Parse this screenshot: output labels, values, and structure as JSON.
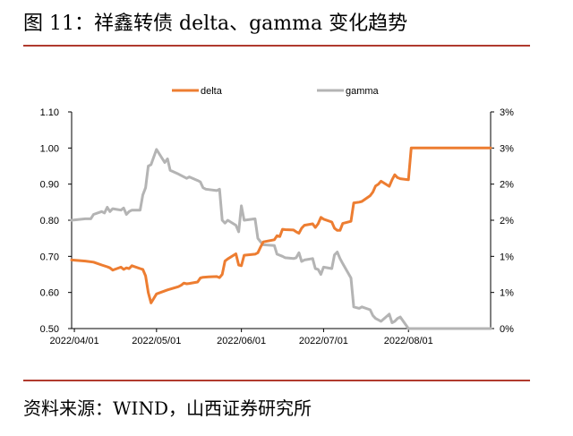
{
  "header": {
    "title": "图 11：祥鑫转债 delta、gamma 变化趋势"
  },
  "footer": {
    "source": "资料来源：WIND，山西证券研究所"
  },
  "colors": {
    "delta": "#ed7d31",
    "gamma": "#b4b4b4",
    "rule": "#b03a2e"
  },
  "chart_data": {
    "type": "line",
    "legend_position": "top",
    "grid": false,
    "x_ticks": [
      "2022/04/01",
      "2022/05/01",
      "2022/06/01",
      "2022/07/01",
      "2022/08/01"
    ],
    "y_left": {
      "ticks": [
        "0.50",
        "0.60",
        "0.70",
        "0.80",
        "0.90",
        "1.00",
        "1.10"
      ],
      "range": [
        0.5,
        1.1
      ]
    },
    "y_right": {
      "ticks": [
        "0%",
        "1%",
        "1%",
        "2%",
        "2%",
        "3%",
        "3%"
      ],
      "range": [
        0.0,
        3.0
      ]
    },
    "series": [
      {
        "name": "delta",
        "axis": "left",
        "points": [
          [
            "2022-03-31",
            0.69
          ],
          [
            "2022-04-05",
            0.687
          ],
          [
            "2022-04-08",
            0.684
          ],
          [
            "2022-04-11",
            0.676
          ],
          [
            "2022-04-13",
            0.671
          ],
          [
            "2022-04-14",
            0.668
          ],
          [
            "2022-04-15",
            0.662
          ],
          [
            "2022-04-18",
            0.67
          ],
          [
            "2022-04-19",
            0.664
          ],
          [
            "2022-04-20",
            0.668
          ],
          [
            "2022-04-21",
            0.666
          ],
          [
            "2022-04-22",
            0.674
          ],
          [
            "2022-04-25",
            0.666
          ],
          [
            "2022-04-26",
            0.664
          ],
          [
            "2022-04-27",
            0.646
          ],
          [
            "2022-04-28",
            0.6
          ],
          [
            "2022-04-29",
            0.571
          ],
          [
            "2022-05-01",
            0.596
          ],
          [
            "2022-05-05",
            0.607
          ],
          [
            "2022-05-09",
            0.616
          ],
          [
            "2022-05-10",
            0.62
          ],
          [
            "2022-05-11",
            0.626
          ],
          [
            "2022-05-12",
            0.624
          ],
          [
            "2022-05-13",
            0.625
          ],
          [
            "2022-05-16",
            0.629
          ],
          [
            "2022-05-17",
            0.64
          ],
          [
            "2022-05-18",
            0.642
          ],
          [
            "2022-05-20",
            0.643
          ],
          [
            "2022-05-23",
            0.644
          ],
          [
            "2022-05-24",
            0.641
          ],
          [
            "2022-05-25",
            0.65
          ],
          [
            "2022-05-26",
            0.687
          ],
          [
            "2022-05-27",
            0.693
          ],
          [
            "2022-05-30",
            0.707
          ],
          [
            "2022-05-31",
            0.676
          ],
          [
            "2022-06-01",
            0.674
          ],
          [
            "2022-06-02",
            0.703
          ],
          [
            "2022-06-06",
            0.706
          ],
          [
            "2022-06-07",
            0.71
          ],
          [
            "2022-06-08",
            0.726
          ],
          [
            "2022-06-09",
            0.74
          ],
          [
            "2022-06-13",
            0.746
          ],
          [
            "2022-06-14",
            0.757
          ],
          [
            "2022-06-15",
            0.755
          ],
          [
            "2022-06-16",
            0.775
          ],
          [
            "2022-06-17",
            0.774
          ],
          [
            "2022-06-20",
            0.773
          ],
          [
            "2022-06-21",
            0.768
          ],
          [
            "2022-06-22",
            0.764
          ],
          [
            "2022-06-23",
            0.778
          ],
          [
            "2022-06-24",
            0.786
          ],
          [
            "2022-06-27",
            0.79
          ],
          [
            "2022-06-28",
            0.78
          ],
          [
            "2022-06-29",
            0.79
          ],
          [
            "2022-06-30",
            0.808
          ],
          [
            "2022-07-01",
            0.803
          ],
          [
            "2022-07-04",
            0.795
          ],
          [
            "2022-07-05",
            0.778
          ],
          [
            "2022-07-06",
            0.772
          ],
          [
            "2022-07-07",
            0.772
          ],
          [
            "2022-07-08",
            0.791
          ],
          [
            "2022-07-11",
            0.797
          ],
          [
            "2022-07-12",
            0.848
          ],
          [
            "2022-07-14",
            0.85
          ],
          [
            "2022-07-15",
            0.852
          ],
          [
            "2022-07-18",
            0.868
          ],
          [
            "2022-07-19",
            0.878
          ],
          [
            "2022-07-20",
            0.895
          ],
          [
            "2022-07-21",
            0.9
          ],
          [
            "2022-07-22",
            0.908
          ],
          [
            "2022-07-25",
            0.894
          ],
          [
            "2022-07-26",
            0.912
          ],
          [
            "2022-07-27",
            0.926
          ],
          [
            "2022-07-28",
            0.918
          ],
          [
            "2022-07-29",
            0.915
          ],
          [
            "2022-08-01",
            0.912
          ],
          [
            "2022-08-02",
            1.0
          ],
          [
            "2022-08-31",
            1.0
          ]
        ]
      },
      {
        "name": "gamma",
        "axis": "right",
        "points": [
          [
            "2022-03-31",
            1.5
          ],
          [
            "2022-04-05",
            1.52
          ],
          [
            "2022-04-07",
            1.52
          ],
          [
            "2022-04-08",
            1.58
          ],
          [
            "2022-04-11",
            1.62
          ],
          [
            "2022-04-12",
            1.6
          ],
          [
            "2022-04-13",
            1.68
          ],
          [
            "2022-04-14",
            1.62
          ],
          [
            "2022-04-15",
            1.66
          ],
          [
            "2022-04-18",
            1.64
          ],
          [
            "2022-04-19",
            1.67
          ],
          [
            "2022-04-20",
            1.58
          ],
          [
            "2022-04-21",
            1.62
          ],
          [
            "2022-04-22",
            1.64
          ],
          [
            "2022-04-25",
            1.64
          ],
          [
            "2022-04-26",
            1.85
          ],
          [
            "2022-04-27",
            1.95
          ],
          [
            "2022-04-28",
            2.25
          ],
          [
            "2022-04-29",
            2.27
          ],
          [
            "2022-05-01",
            2.48
          ],
          [
            "2022-05-04",
            2.3
          ],
          [
            "2022-05-05",
            2.35
          ],
          [
            "2022-05-06",
            2.19
          ],
          [
            "2022-05-09",
            2.14
          ],
          [
            "2022-05-12",
            2.08
          ],
          [
            "2022-05-13",
            2.1
          ],
          [
            "2022-05-16",
            2.05
          ],
          [
            "2022-05-17",
            2.03
          ],
          [
            "2022-05-18",
            1.95
          ],
          [
            "2022-05-19",
            1.93
          ],
          [
            "2022-05-23",
            1.91
          ],
          [
            "2022-05-24",
            1.93
          ],
          [
            "2022-05-25",
            1.5
          ],
          [
            "2022-05-26",
            1.46
          ],
          [
            "2022-05-27",
            1.5
          ],
          [
            "2022-05-30",
            1.43
          ],
          [
            "2022-05-31",
            1.34
          ],
          [
            "2022-06-01",
            1.7
          ],
          [
            "2022-06-02",
            1.5
          ],
          [
            "2022-06-06",
            1.52
          ],
          [
            "2022-06-07",
            1.25
          ],
          [
            "2022-06-08",
            1.2
          ],
          [
            "2022-06-09",
            1.16
          ],
          [
            "2022-06-13",
            1.15
          ],
          [
            "2022-06-14",
            1.03
          ],
          [
            "2022-06-16",
            1.0
          ],
          [
            "2022-06-17",
            0.98
          ],
          [
            "2022-06-20",
            0.97
          ],
          [
            "2022-06-21",
            0.98
          ],
          [
            "2022-06-22",
            1.05
          ],
          [
            "2022-06-23",
            0.93
          ],
          [
            "2022-06-24",
            0.95
          ],
          [
            "2022-06-27",
            0.97
          ],
          [
            "2022-06-28",
            0.83
          ],
          [
            "2022-06-29",
            0.82
          ],
          [
            "2022-06-30",
            0.75
          ],
          [
            "2022-07-01",
            0.85
          ],
          [
            "2022-07-04",
            0.83
          ],
          [
            "2022-07-05",
            1.02
          ],
          [
            "2022-07-06",
            1.06
          ],
          [
            "2022-07-07",
            0.97
          ],
          [
            "2022-07-08",
            0.9
          ],
          [
            "2022-07-11",
            0.7
          ],
          [
            "2022-07-12",
            0.3
          ],
          [
            "2022-07-14",
            0.28
          ],
          [
            "2022-07-15",
            0.3
          ],
          [
            "2022-07-18",
            0.26
          ],
          [
            "2022-07-19",
            0.18
          ],
          [
            "2022-07-20",
            0.14
          ],
          [
            "2022-07-21",
            0.12
          ],
          [
            "2022-07-22",
            0.1
          ],
          [
            "2022-07-25",
            0.2
          ],
          [
            "2022-07-26",
            0.08
          ],
          [
            "2022-07-27",
            0.1
          ],
          [
            "2022-07-28",
            0.14
          ],
          [
            "2022-07-29",
            0.16
          ],
          [
            "2022-08-01",
            0.0
          ],
          [
            "2022-08-31",
            0.0
          ]
        ]
      }
    ]
  }
}
